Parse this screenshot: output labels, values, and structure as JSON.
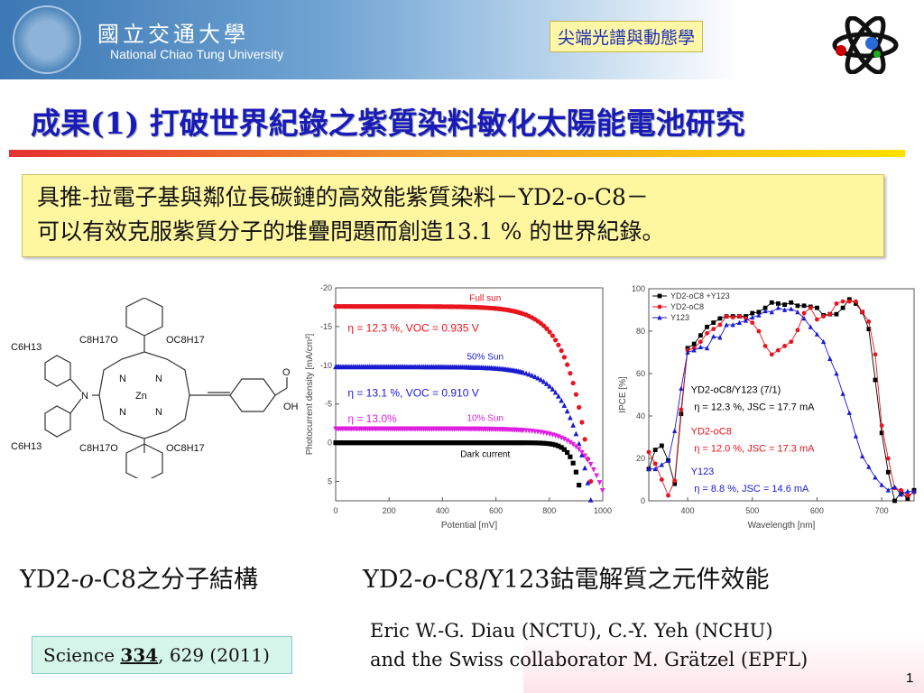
{
  "header": {
    "university_cn": "國立交通大學",
    "university_en": "National Chiao Tung University",
    "tag": "尖端光譜與動態學"
  },
  "title": "成果(1) 打破世界紀錄之紫質染料敏化太陽能電池研究",
  "highlight": {
    "line1": "具推-拉電子基與鄰位長碳鏈的高效能紫質染料－YD2-o-C8－",
    "line2": "可以有效克服紫質分子的堆疊問題而創造13.1 % 的世界紀錄。"
  },
  "molecule": {
    "labels": [
      "C6H13",
      "C6H13",
      "C8H17O",
      "OC8H17",
      "C8H17O",
      "OC8H17",
      "N",
      "N",
      "N",
      "N",
      "N",
      "Zn",
      "O",
      "OH"
    ]
  },
  "captions": {
    "left_pre": "YD2-",
    "left_it": "o",
    "left_post": "-C8之分子結構",
    "right_pre": "YD2-",
    "right_it": "o",
    "right_post": "-C8/Y123鈷電解質之元件效能"
  },
  "reference": {
    "journal": "Science ",
    "volume": "334",
    "pages": ", 629 (2011)"
  },
  "authors": {
    "line1": "Eric W.-G. Diau (NCTU),  C.-Y. Yeh (NCHU)",
    "line2": "and the Swiss collaborator M. Grätzel (EPFL)"
  },
  "page_number": "1",
  "chart_data": [
    {
      "type": "scatter",
      "xlabel": "Potential [mV]",
      "ylabel": "Photocurrent density [mA/cm²]",
      "xlim": [
        0,
        1000
      ],
      "ylim": [
        -20,
        7.5
      ],
      "y_inverted": true,
      "xticks": [
        0,
        200,
        400,
        600,
        800,
        1000
      ],
      "yticks": [
        -20,
        -15,
        -10,
        -5,
        0,
        5
      ],
      "series": [
        {
          "name": "Full sun",
          "color": "#e8141e",
          "marker": "circle",
          "jsc": 17.6,
          "voc": 935,
          "annotation": "η = 12.3 %, VOC = 0.935 V"
        },
        {
          "name": "50% Sun",
          "color": "#1a1ad0",
          "marker": "triangle",
          "jsc": 9.8,
          "voc": 910,
          "annotation": "η = 13.1 %, VOC = 0.910 V"
        },
        {
          "name": "10% Sun",
          "color": "#e020e0",
          "marker": "triangle-down",
          "jsc": 1.8,
          "voc": 880,
          "annotation": "η = 13.0%"
        },
        {
          "name": "Dark current",
          "color": "#000000",
          "marker": "square",
          "jsc": 0,
          "voc": 860,
          "annotation": ""
        }
      ]
    },
    {
      "type": "line",
      "xlabel": "Wavelength [nm]",
      "ylabel": "IPCE [%]",
      "xlim": [
        340,
        750
      ],
      "ylim": [
        0,
        100
      ],
      "xticks": [
        400,
        500,
        600,
        700
      ],
      "yticks": [
        0,
        20,
        40,
        60,
        80,
        100
      ],
      "x": [
        340,
        350,
        360,
        370,
        380,
        390,
        400,
        410,
        420,
        430,
        440,
        450,
        460,
        470,
        480,
        490,
        500,
        510,
        520,
        530,
        540,
        550,
        560,
        570,
        580,
        590,
        600,
        610,
        620,
        630,
        640,
        650,
        660,
        670,
        680,
        690,
        700,
        710,
        720,
        730,
        740,
        750
      ],
      "series": [
        {
          "name": "YD2-oC8 +Y123",
          "color": "#000000",
          "marker": "square",
          "values": [
            15,
            24,
            26,
            19,
            8,
            41,
            72,
            74,
            78,
            82,
            84,
            86,
            87,
            87,
            87,
            87,
            88.5,
            89,
            91,
            93.5,
            93,
            92.5,
            93.5,
            92,
            92,
            91.5,
            91,
            87.5,
            88,
            88,
            91,
            95,
            93,
            89,
            81,
            57,
            32,
            13.5,
            0,
            4,
            1,
            5
          ]
        },
        {
          "name": "YD2-oC8",
          "color": "#e8141e",
          "marker": "circle",
          "values": [
            23,
            17.5,
            10,
            2.5,
            9.5,
            43,
            71,
            72,
            75,
            79,
            81,
            83,
            87,
            86.5,
            87,
            86,
            84,
            80,
            73,
            69,
            71,
            73,
            75,
            80.5,
            88.5,
            91,
            85.5,
            87,
            88,
            93,
            94,
            94,
            94,
            89,
            84.5,
            69,
            35.5,
            20,
            6,
            5,
            2.5,
            4
          ]
        },
        {
          "name": "Y123",
          "color": "#1a1ad0",
          "marker": "triangle",
          "values": [
            15,
            15,
            17,
            19,
            33,
            53,
            70,
            71,
            72.5,
            72,
            77.5,
            77,
            83,
            83,
            84,
            85,
            86.5,
            87.5,
            89.5,
            89,
            91,
            90,
            90.5,
            89,
            86,
            82,
            78.5,
            75,
            67,
            60,
            50.5,
            41.5,
            30.5,
            21,
            16,
            11,
            7.5,
            5,
            6.5,
            3,
            4.5,
            4.5
          ]
        }
      ],
      "annotations": [
        {
          "title": "YD2-oC8/Y123 (7/1)",
          "eta": "η = 12.3 %, JSC = 17.7 mA",
          "color": "#000000"
        },
        {
          "title": "YD2-oC8",
          "eta": "η = 12.0 %, JSC = 17.3 mA",
          "color": "#e8141e"
        },
        {
          "title": "Y123",
          "eta": "η = 8.8 %, JSC = 14.6 mA",
          "color": "#1a1ad0"
        }
      ]
    }
  ]
}
